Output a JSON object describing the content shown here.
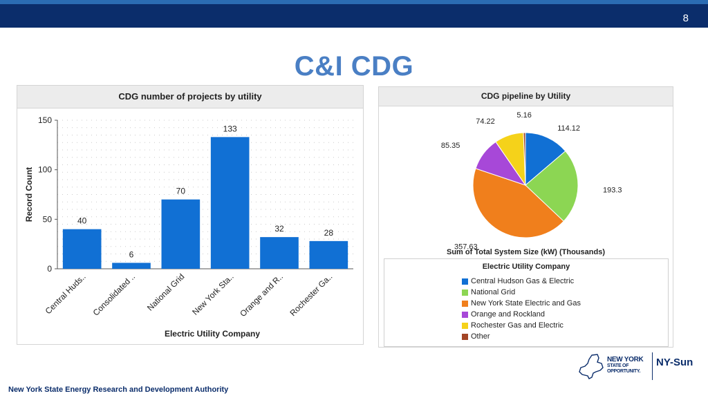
{
  "header": {
    "page_number": "8"
  },
  "slide": {
    "title": "C&I CDG"
  },
  "footer": {
    "organization": "New York State Energy Research and Development Authority"
  },
  "logo": {
    "line1": "NEW YORK",
    "line2": "STATE OF",
    "line3": "OPPORTUNITY.",
    "product": "NY-Sun"
  },
  "chart_data": [
    {
      "type": "bar",
      "title": "CDG number of projects by utility",
      "xlabel": "Electric Utility Company",
      "ylabel": "Record Count",
      "ylim": [
        0,
        150
      ],
      "yticks": [
        0,
        50,
        100,
        150
      ],
      "grid": true,
      "color": "#1170d4",
      "categories": [
        "Central Huds..",
        "Consolidated ..",
        "National Grid",
        "New York Sta..",
        "Orange and R..",
        "Rochester Ga.."
      ],
      "values": [
        40,
        6,
        70,
        133,
        32,
        28
      ],
      "value_labels": [
        "40",
        "6",
        "70",
        "133",
        "32",
        "28"
      ]
    },
    {
      "type": "pie",
      "title": "CDG pipeline by Utility",
      "xlabel": "Sum of Total System Size (kW) (Thousands)",
      "legend_title": "Electric Utility Company",
      "legend_position": "bottom",
      "slices": [
        {
          "name": "Central Hudson Gas & Electric",
          "value": 114.12,
          "label": "114.12",
          "color": "#1170d4"
        },
        {
          "name": "National Grid",
          "value": 193.3,
          "label": "193.3",
          "color": "#8cd653"
        },
        {
          "name": "New York State Electric and Gas",
          "value": 357.63,
          "label": "357.63",
          "color": "#f07f1c"
        },
        {
          "name": "Orange and Rockland",
          "value": 85.35,
          "label": "85.35",
          "color": "#a748d8"
        },
        {
          "name": "Rochester Gas and Electric",
          "value": 74.22,
          "label": "74.22",
          "color": "#f5d21a"
        },
        {
          "name": "Other",
          "value": 5.16,
          "label": "5.16",
          "color": "#a34525"
        }
      ]
    }
  ]
}
